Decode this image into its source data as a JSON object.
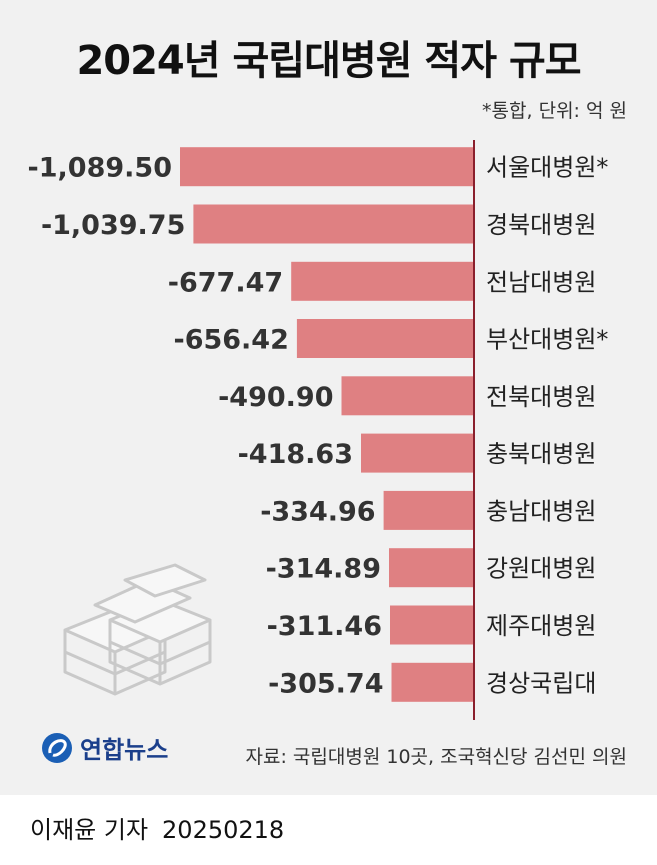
{
  "title": "2024년 국립대병원 적자 규모",
  "unit_note": "*통합, 단위: 억 원",
  "source": "자료: 국립대병원 10곳, 조국혁신당 김선민 의원",
  "logo_text": "연합뉴스",
  "byline": {
    "reporter": "이재윤 기자",
    "date": "20250218"
  },
  "colors": {
    "bar": "#df8082",
    "axis": "#8a1f2c",
    "background": "#f1f1f1"
  },
  "icons": [
    "money-stack-icon",
    "yonhap-logo-icon"
  ],
  "chart_data": {
    "type": "bar",
    "orientation": "horizontal",
    "categories": [
      "서울대병원*",
      "경북대병원",
      "전남대병원",
      "부산대병원*",
      "전북대병원",
      "충북대병원",
      "충남대병원",
      "강원대병원",
      "제주대병원",
      "경상국립대"
    ],
    "values": [
      -1089.5,
      -1039.75,
      -677.47,
      -656.42,
      -490.9,
      -418.63,
      -334.96,
      -314.89,
      -311.46,
      -305.74
    ],
    "value_labels": [
      "-1,089.50",
      "-1,039.75",
      "-677.47",
      "-656.42",
      "-490.90",
      "-418.63",
      "-334.96",
      "-314.89",
      "-311.46",
      "-305.74"
    ],
    "title": "2024년 국립대병원 적자 규모",
    "xlabel": "",
    "ylabel": "",
    "xlim": [
      -1100,
      0
    ]
  }
}
